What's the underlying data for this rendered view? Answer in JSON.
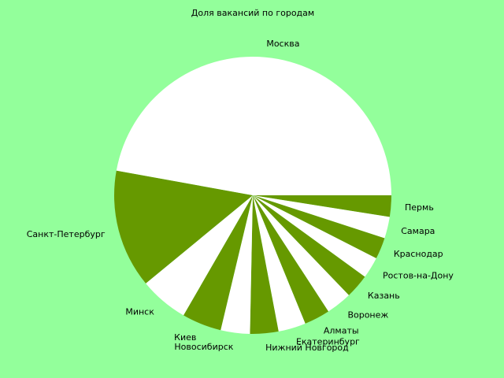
{
  "chart_data": {
    "type": "pie",
    "title": "Доля вакансий по городам",
    "start_angle_deg": 0,
    "direction": "clockwise",
    "colors": [
      "#669900",
      "#ffffff"
    ],
    "slices": [
      {
        "label": "Пермь",
        "value": 2.5
      },
      {
        "label": "Самара",
        "value": 2.5
      },
      {
        "label": "Краснодар",
        "value": 2.5
      },
      {
        "label": "Ростов-на-Дону",
        "value": 2.5
      },
      {
        "label": "Казань",
        "value": 2.8
      },
      {
        "label": "Воронеж",
        "value": 3.0
      },
      {
        "label": "Алматы",
        "value": 3.0
      },
      {
        "label": "Екатеринбург",
        "value": 3.2
      },
      {
        "label": "Нижний Новгород",
        "value": 3.3
      },
      {
        "label": "Новосибирск",
        "value": 3.4
      },
      {
        "label": "Киев",
        "value": 4.6
      },
      {
        "label": "Минск",
        "value": 5.7
      },
      {
        "label": "Санкт-Петербург",
        "value": 13.8
      },
      {
        "label": "Москва",
        "value": 47.1
      }
    ]
  }
}
